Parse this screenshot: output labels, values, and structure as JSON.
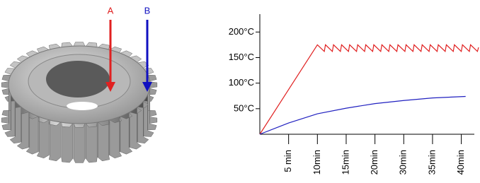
{
  "chart_data": {
    "type": "line",
    "annotations": [
      "A",
      "B"
    ],
    "xlim": [
      0,
      7.6
    ],
    "xticks": [
      {
        "value": 1,
        "label": "5 min"
      },
      {
        "value": 2,
        "label": "10min"
      },
      {
        "value": 3,
        "label": "15min"
      },
      {
        "value": 4,
        "label": "20min"
      },
      {
        "value": 5,
        "label": "30min"
      },
      {
        "value": 6,
        "label": "35min"
      },
      {
        "value": 7,
        "label": "40min"
      }
    ],
    "ylim": [
      0,
      235
    ],
    "yticks": [
      {
        "value": 50,
        "label": "50°C"
      },
      {
        "value": 100,
        "label": "100°C"
      },
      {
        "value": 150,
        "label": "150°C"
      },
      {
        "value": 200,
        "label": "200°C"
      }
    ],
    "series": [
      {
        "color": "#e02020",
        "x": [
          0,
          2.0,
          2.24,
          2.28,
          2.52,
          2.56,
          2.8,
          2.84,
          3.08,
          3.12,
          3.36,
          3.4,
          3.64,
          3.68,
          3.92,
          3.96,
          4.2,
          4.24,
          4.48,
          4.52,
          4.76,
          4.8,
          5.04,
          5.08,
          5.32,
          5.36,
          5.6,
          5.64,
          5.88,
          5.92,
          6.16,
          6.2,
          6.44,
          6.48,
          6.72,
          6.76,
          7.0,
          7.04,
          7.28,
          7.32,
          7.56,
          7.6
        ],
        "values": [
          0,
          175,
          162,
          175,
          162,
          175,
          162,
          175,
          162,
          175,
          162,
          175,
          162,
          175,
          162,
          175,
          162,
          175,
          162,
          175,
          162,
          175,
          162,
          175,
          162,
          175,
          162,
          175,
          162,
          175,
          162,
          175,
          162,
          175,
          162,
          175,
          162,
          175,
          162,
          175,
          162,
          170
        ]
      },
      {
        "color": "#2020c0",
        "x": [
          0,
          1,
          2,
          3,
          4,
          5,
          6,
          7.15
        ],
        "values": [
          0,
          22,
          40,
          51,
          60,
          66,
          71,
          74
        ]
      }
    ]
  }
}
